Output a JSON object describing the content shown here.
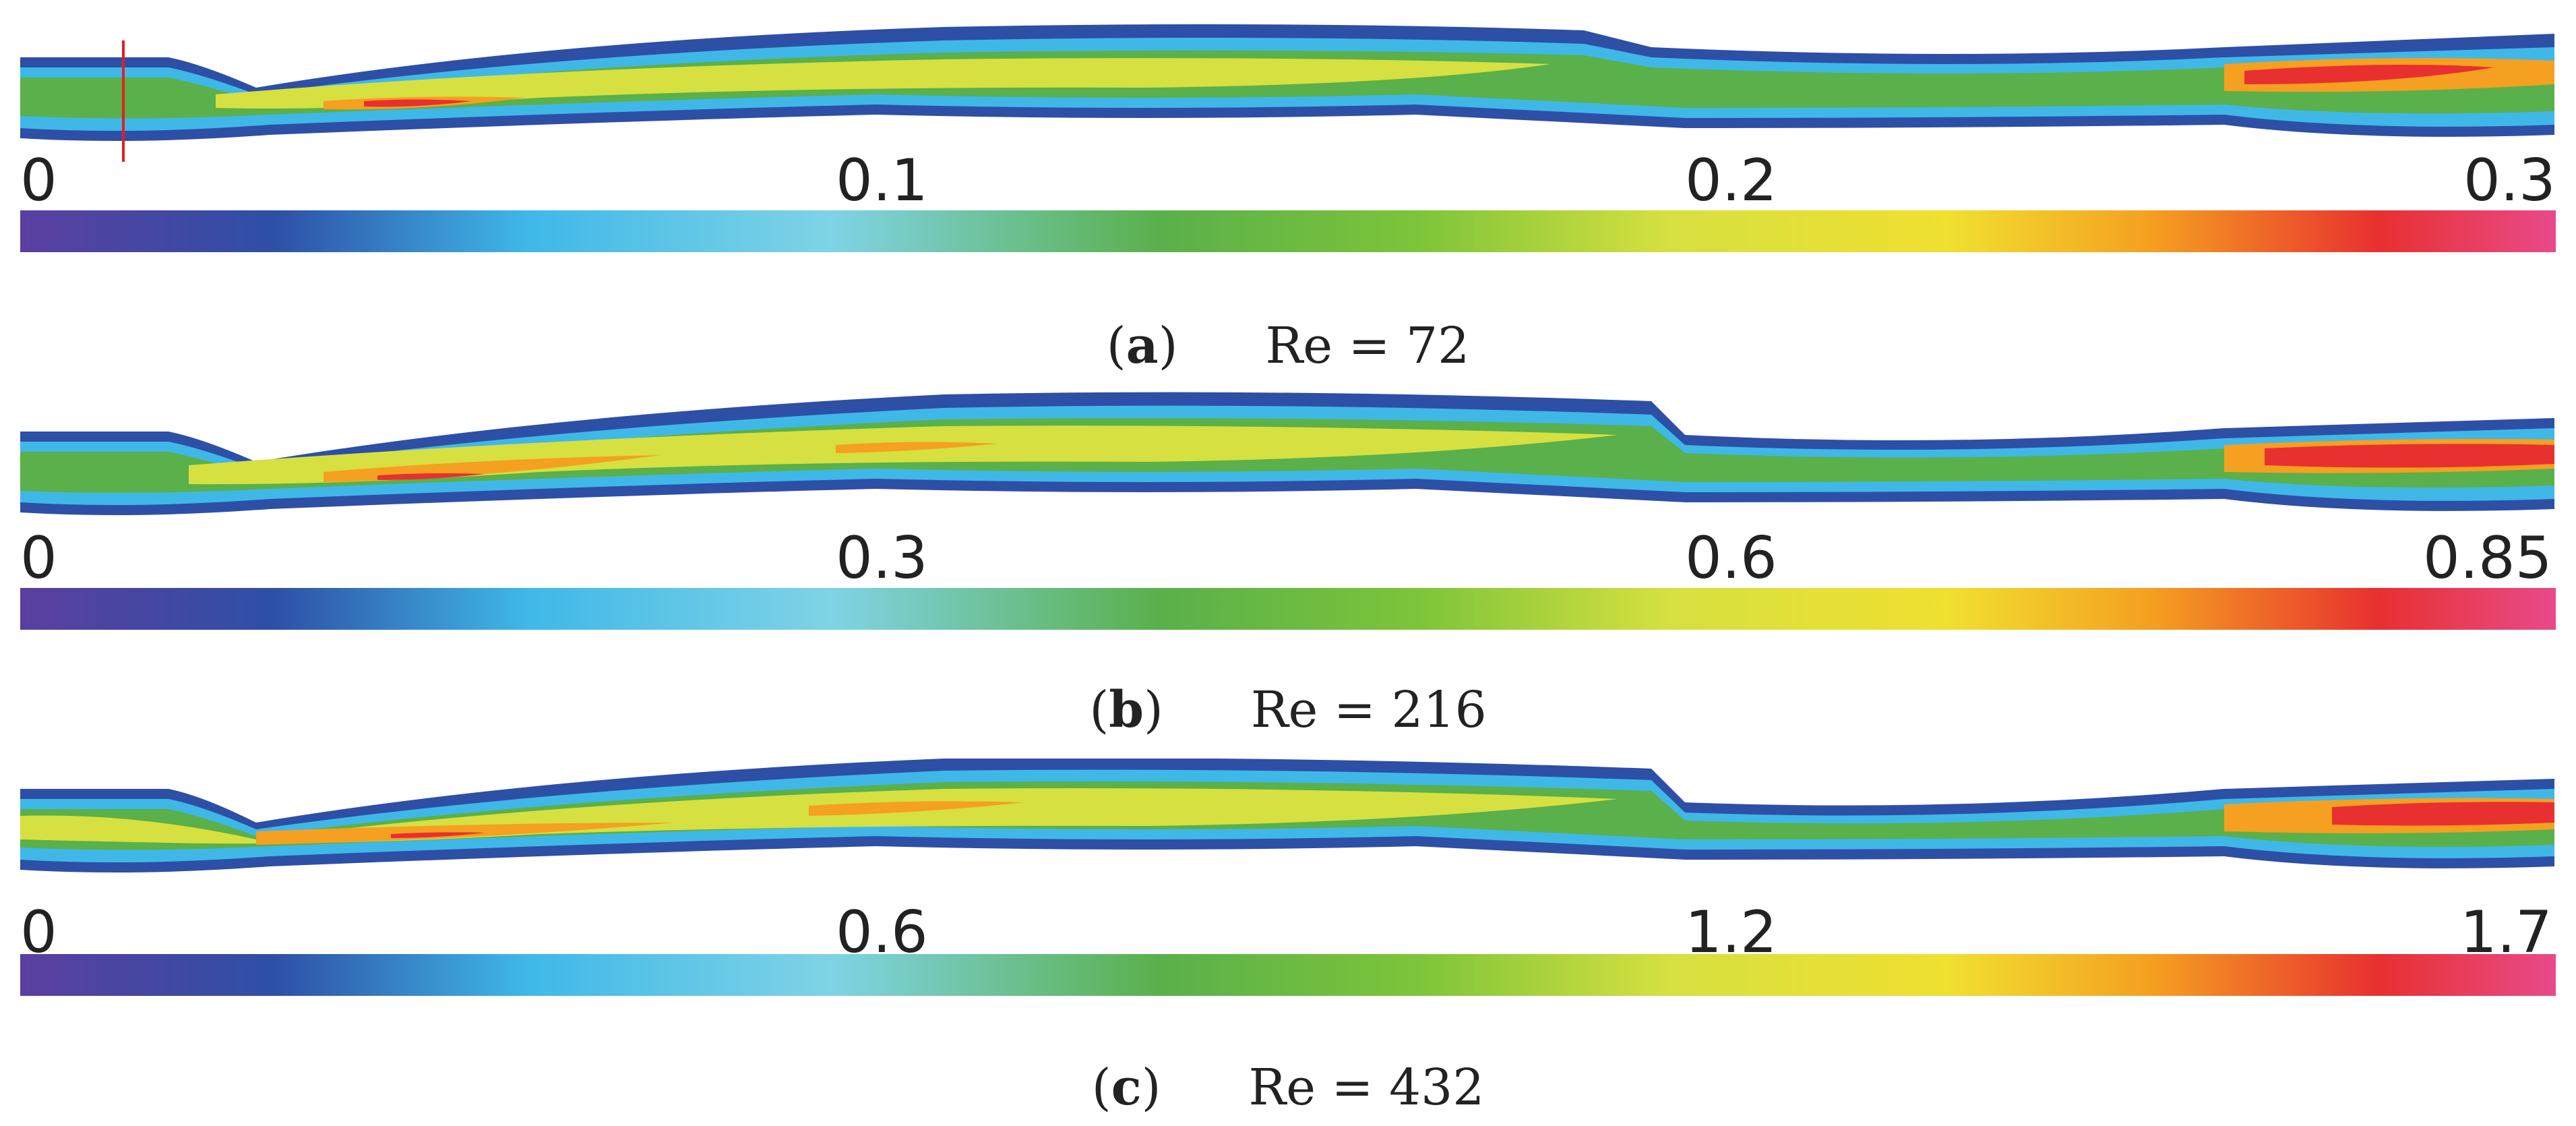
{
  "panels": [
    {
      "id": "a",
      "caption_letter": "a",
      "caption_re": "Re = 72",
      "ticks": [
        "0",
        "0.1",
        "0.2",
        "0.3"
      ],
      "range": [
        0,
        0.3
      ]
    },
    {
      "id": "b",
      "caption_letter": "b",
      "caption_re": "Re = 216",
      "ticks": [
        "0",
        "0.3",
        "0.6",
        "0.85"
      ],
      "range": [
        0,
        0.85
      ]
    },
    {
      "id": "c",
      "caption_letter": "c",
      "caption_re": "Re = 432",
      "ticks": [
        "0",
        "0.6",
        "1.2",
        "1.7"
      ],
      "range": [
        0,
        1.7
      ]
    }
  ],
  "colormap": [
    "#5b3fa0",
    "#2e4fa6",
    "#2b7fd6",
    "#3fb8e8",
    "#7fd3e6",
    "#4fb8a0",
    "#5ab04a",
    "#7cc43a",
    "#d6e040",
    "#f0e030",
    "#f5a020",
    "#e83030",
    "#e84a8a"
  ]
}
